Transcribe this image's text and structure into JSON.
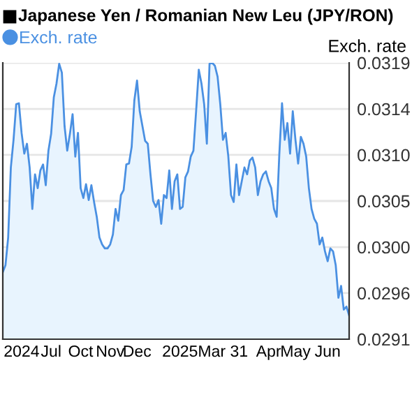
{
  "chart_data": {
    "type": "area",
    "title": "Japanese Yen / Romanian New Leu (JPY/RON)",
    "ylabel": "Exch. rate",
    "legend": "top left",
    "grid": "y",
    "marker": "none",
    "categories": [
      null,
      null,
      null,
      null,
      null,
      null,
      null,
      "2024",
      null,
      null,
      null,
      null,
      null,
      null,
      null,
      null,
      null,
      null,
      "Jul",
      null,
      null,
      null,
      null,
      null,
      null,
      null,
      null,
      null,
      null,
      "Oct",
      null,
      null,
      null,
      null,
      null,
      null,
      null,
      null,
      null,
      null,
      "Nov",
      null,
      null,
      null,
      null,
      null,
      null,
      null,
      null,
      null,
      "Dec",
      null,
      null,
      null,
      null,
      null,
      null,
      null,
      null,
      null,
      null,
      null,
      null,
      null,
      null,
      null,
      "2025",
      null,
      null,
      null,
      null,
      null,
      null,
      null,
      null,
      null,
      null,
      null,
      null,
      null,
      null,
      null,
      "Mar 31",
      null,
      null,
      null,
      null,
      null,
      null,
      null,
      null,
      null,
      null,
      null,
      null,
      null,
      null,
      null,
      null,
      "Apr",
      null,
      null,
      null,
      null,
      null,
      null,
      null,
      null,
      null,
      "May",
      null,
      null,
      null,
      null,
      null,
      null,
      null,
      null,
      null,
      null,
      null,
      "Jun",
      null,
      null,
      null,
      null,
      null,
      null,
      null,
      null
    ],
    "ylim": [
      0.0291,
      0.0319
    ],
    "yticks": [
      {
        "value": 0.0291,
        "label": "0.0291"
      },
      {
        "value": 0.029567,
        "label": "0.0296"
      },
      {
        "value": 0.030033,
        "label": "0.0300"
      },
      {
        "value": 0.0305,
        "label": "0.0305"
      },
      {
        "value": 0.030967,
        "label": "0.0310"
      },
      {
        "value": 0.031433,
        "label": "0.0314"
      },
      {
        "value": 0.0319,
        "label": "0.0319"
      }
    ],
    "series": [
      {
        "name": "Exch. rate",
        "color": "#4a90e2",
        "values": [
          0.02978,
          0.02985,
          0.03013,
          0.03084,
          0.03112,
          0.03148,
          0.03149,
          0.03119,
          0.03098,
          0.03108,
          0.03084,
          0.03042,
          0.03077,
          0.03063,
          0.03081,
          0.03087,
          0.03066,
          0.03101,
          0.03118,
          0.03155,
          0.03169,
          0.03189,
          0.0318,
          0.03126,
          0.03101,
          0.03118,
          0.03138,
          0.03095,
          0.03119,
          0.03063,
          0.03053,
          0.03067,
          0.03051,
          0.03066,
          0.03049,
          0.03034,
          0.03013,
          0.03006,
          0.03002,
          0.03002,
          0.03006,
          0.03016,
          0.03042,
          0.0303,
          0.03056,
          0.03061,
          0.03087,
          0.03088,
          0.03105,
          0.03152,
          0.03172,
          0.03141,
          0.03126,
          0.03111,
          0.03108,
          0.03077,
          0.0305,
          0.03044,
          0.03051,
          0.03027,
          0.03056,
          0.03053,
          0.03081,
          0.03042,
          0.0307,
          0.03077,
          0.03042,
          0.03044,
          0.03074,
          0.0308,
          0.03095,
          0.03101,
          0.03141,
          0.03183,
          0.03169,
          0.03148,
          0.03108,
          0.03189,
          0.0319,
          0.03187,
          0.03176,
          0.03148,
          0.03112,
          0.03119,
          0.03095,
          0.03056,
          0.03049,
          0.03087,
          0.03056,
          0.0307,
          0.03084,
          0.03077,
          0.03091,
          0.03094,
          0.03084,
          0.03056,
          0.0307,
          0.03077,
          0.0308,
          0.0307,
          0.03063,
          0.03042,
          0.03034,
          0.03098,
          0.03149,
          0.03112,
          0.03129,
          0.03098,
          0.03141,
          0.03112,
          0.03088,
          0.03115,
          0.03108,
          0.03095,
          0.03063,
          0.03042,
          0.03032,
          0.03027,
          0.03006,
          0.03013,
          0.02999,
          0.02989,
          0.03002,
          0.02999,
          0.02985,
          0.02952,
          0.02964,
          0.0294,
          0.02943,
          0.02934
        ]
      }
    ]
  }
}
